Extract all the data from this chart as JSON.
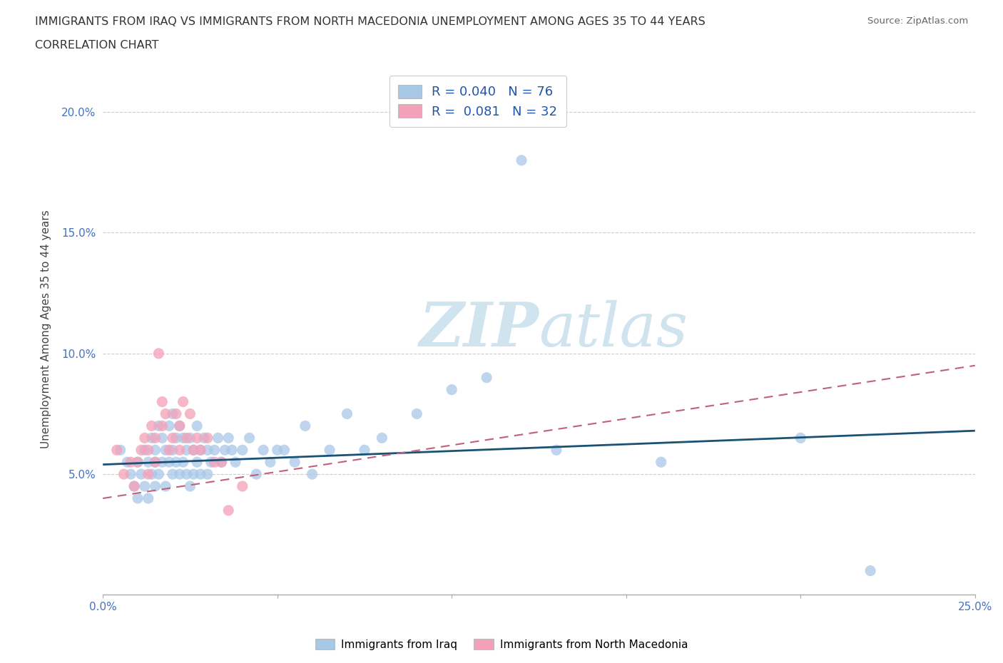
{
  "title_line1": "IMMIGRANTS FROM IRAQ VS IMMIGRANTS FROM NORTH MACEDONIA UNEMPLOYMENT AMONG AGES 35 TO 44 YEARS",
  "title_line2": "CORRELATION CHART",
  "source_text": "Source: ZipAtlas.com",
  "ylabel": "Unemployment Among Ages 35 to 44 years",
  "xlim": [
    0.0,
    0.25
  ],
  "ylim": [
    0.0,
    0.22
  ],
  "yticks": [
    0.05,
    0.1,
    0.15,
    0.2
  ],
  "ytick_labels": [
    "5.0%",
    "10.0%",
    "15.0%",
    "20.0%"
  ],
  "xtick_positions": [
    0.0,
    0.05,
    0.1,
    0.15,
    0.2,
    0.25
  ],
  "xtick_labels": [
    "0.0%",
    "",
    "",
    "",
    "",
    "25.0%"
  ],
  "legend_iraq_R": "0.040",
  "legend_iraq_N": "76",
  "legend_mac_R": "0.081",
  "legend_mac_N": "32",
  "iraq_color": "#a8c8e8",
  "mac_color": "#f4a0b8",
  "iraq_line_color": "#1a5276",
  "mac_line_color": "#c0607a",
  "watermark_color": "#d0e4f0",
  "iraq_scatter_x": [
    0.005,
    0.007,
    0.008,
    0.009,
    0.01,
    0.01,
    0.011,
    0.012,
    0.012,
    0.013,
    0.013,
    0.014,
    0.014,
    0.015,
    0.015,
    0.015,
    0.016,
    0.016,
    0.017,
    0.017,
    0.018,
    0.018,
    0.019,
    0.019,
    0.02,
    0.02,
    0.02,
    0.021,
    0.021,
    0.022,
    0.022,
    0.023,
    0.023,
    0.024,
    0.024,
    0.025,
    0.025,
    0.026,
    0.026,
    0.027,
    0.027,
    0.028,
    0.028,
    0.029,
    0.03,
    0.03,
    0.031,
    0.032,
    0.033,
    0.034,
    0.035,
    0.036,
    0.037,
    0.038,
    0.04,
    0.042,
    0.044,
    0.046,
    0.048,
    0.05,
    0.052,
    0.055,
    0.058,
    0.06,
    0.065,
    0.07,
    0.075,
    0.08,
    0.09,
    0.1,
    0.11,
    0.12,
    0.13,
    0.16,
    0.2,
    0.22
  ],
  "iraq_scatter_y": [
    0.06,
    0.055,
    0.05,
    0.045,
    0.04,
    0.055,
    0.05,
    0.06,
    0.045,
    0.055,
    0.04,
    0.065,
    0.05,
    0.06,
    0.055,
    0.045,
    0.07,
    0.05,
    0.065,
    0.055,
    0.06,
    0.045,
    0.07,
    0.055,
    0.075,
    0.06,
    0.05,
    0.065,
    0.055,
    0.07,
    0.05,
    0.065,
    0.055,
    0.06,
    0.05,
    0.065,
    0.045,
    0.06,
    0.05,
    0.07,
    0.055,
    0.06,
    0.05,
    0.065,
    0.06,
    0.05,
    0.055,
    0.06,
    0.065,
    0.055,
    0.06,
    0.065,
    0.06,
    0.055,
    0.06,
    0.065,
    0.05,
    0.06,
    0.055,
    0.06,
    0.06,
    0.055,
    0.07,
    0.05,
    0.06,
    0.075,
    0.06,
    0.065,
    0.075,
    0.085,
    0.09,
    0.18,
    0.06,
    0.055,
    0.065,
    0.01
  ],
  "mac_scatter_x": [
    0.004,
    0.006,
    0.008,
    0.009,
    0.01,
    0.011,
    0.012,
    0.013,
    0.013,
    0.014,
    0.015,
    0.015,
    0.016,
    0.017,
    0.017,
    0.018,
    0.019,
    0.02,
    0.021,
    0.022,
    0.022,
    0.023,
    0.024,
    0.025,
    0.026,
    0.027,
    0.028,
    0.03,
    0.032,
    0.034,
    0.036,
    0.04
  ],
  "mac_scatter_y": [
    0.06,
    0.05,
    0.055,
    0.045,
    0.055,
    0.06,
    0.065,
    0.05,
    0.06,
    0.07,
    0.055,
    0.065,
    0.1,
    0.07,
    0.08,
    0.075,
    0.06,
    0.065,
    0.075,
    0.07,
    0.06,
    0.08,
    0.065,
    0.075,
    0.06,
    0.065,
    0.06,
    0.065,
    0.055,
    0.055,
    0.035,
    0.045
  ],
  "iraq_trend_x": [
    0.0,
    0.25
  ],
  "iraq_trend_y": [
    0.054,
    0.068
  ],
  "mac_trend_x": [
    0.0,
    0.25
  ],
  "mac_trend_y": [
    0.04,
    0.095
  ]
}
